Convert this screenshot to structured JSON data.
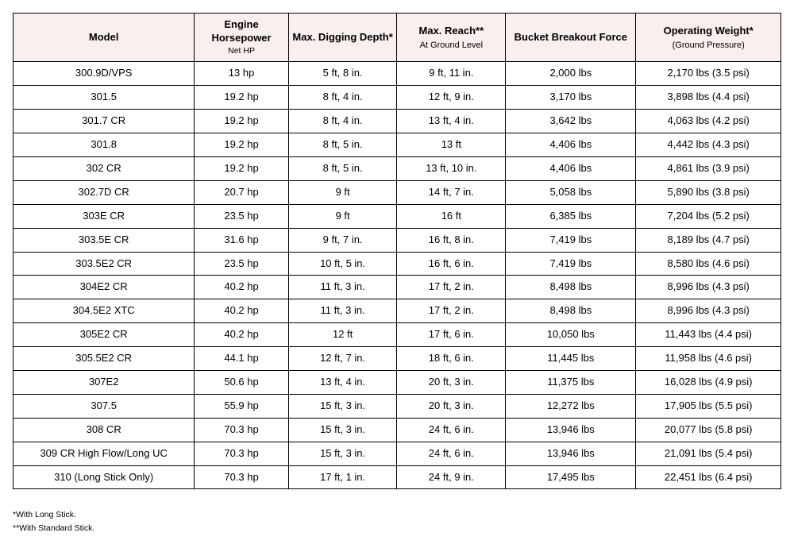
{
  "table": {
    "type": "table",
    "columns": [
      {
        "label": "Model",
        "sub": "",
        "sub2": "",
        "width": "24%"
      },
      {
        "label": "Engine Horsepower",
        "sub": "",
        "sub2": "Net HP",
        "width": "12%"
      },
      {
        "label": "Max. Digging Depth*",
        "sub": "",
        "sub2": "",
        "width": "14%"
      },
      {
        "label": "Max. Reach**",
        "sub": "At Ground Level",
        "sub2": "",
        "width": "14%"
      },
      {
        "label": "Bucket Breakout Force",
        "sub": "",
        "sub2": "",
        "width": "17%"
      },
      {
        "label": "Operating Weight*",
        "sub": "(Ground Pressure)",
        "sub2": "",
        "width": "19%"
      }
    ],
    "rows": [
      [
        "300.9D/VPS",
        "13 hp",
        "5 ft, 8 in.",
        "9 ft, 11 in.",
        "2,000 lbs",
        "2,170 lbs (3.5 psi)"
      ],
      [
        "301.5",
        "19.2 hp",
        "8 ft, 4 in.",
        "12 ft, 9 in.",
        "3,170 lbs",
        "3,898 lbs (4.4 psi)"
      ],
      [
        "301.7 CR",
        "19.2 hp",
        "8 ft, 4 in.",
        "13 ft, 4 in.",
        "3,642 lbs",
        "4,063 lbs (4.2 psi)"
      ],
      [
        "301.8",
        "19.2 hp",
        "8 ft, 5 in.",
        "13 ft",
        "4,406 lbs",
        "4,442 lbs (4.3 psi)"
      ],
      [
        "302 CR",
        "19.2 hp",
        "8 ft, 5 in.",
        "13 ft, 10 in.",
        "4,406 lbs",
        "4,861 lbs (3.9 psi)"
      ],
      [
        "302.7D CR",
        "20.7 hp",
        "9 ft",
        "14 ft, 7 in.",
        "5,058 lbs",
        "5,890 lbs (3.8 psi)"
      ],
      [
        "303E CR",
        "23.5 hp",
        "9 ft",
        "16 ft",
        "6,385 lbs",
        "7,204 lbs (5.2 psi)"
      ],
      [
        "303.5E CR",
        "31.6 hp",
        "9 ft, 7 in.",
        "16 ft, 8 in.",
        "7,419 lbs",
        "8,189 lbs (4.7 psi)"
      ],
      [
        "303.5E2 CR",
        "23.5 hp",
        "10 ft, 5 in.",
        "16 ft, 6 in.",
        "7,419 lbs",
        "8,580 lbs (4.6 psi)"
      ],
      [
        "304E2 CR",
        "40.2 hp",
        "11 ft, 3 in.",
        "17 ft, 2 in.",
        "8,498 lbs",
        "8,996 lbs (4.3 psi)"
      ],
      [
        "304.5E2 XTC",
        "40.2 hp",
        "11 ft, 3 in.",
        "17 ft, 2 in.",
        "8,498 lbs",
        "8,996 lbs (4.3 psi)"
      ],
      [
        "305E2 CR",
        "40.2 hp",
        "12 ft",
        "17 ft, 6 in.",
        "10,050 lbs",
        "11,443 lbs (4.4 psi)"
      ],
      [
        "305.5E2 CR",
        "44.1 hp",
        "12 ft, 7 in.",
        "18 ft, 6 in.",
        "11,445 lbs",
        "11,958 lbs (4.6 psi)"
      ],
      [
        "307E2",
        "50.6 hp",
        "13 ft, 4 in.",
        "20 ft, 3 in.",
        "11,375 lbs",
        "16,028 lbs (4.9 psi)"
      ],
      [
        "307.5",
        "55.9 hp",
        "15 ft, 3 in.",
        "20 ft, 3 in.",
        "12,272 lbs",
        "17,905 lbs (5.5 psi)"
      ],
      [
        "308 CR",
        "70.3 hp",
        "15 ft, 3 in.",
        "24 ft, 6 in.",
        "13,946 lbs",
        "20,077 lbs (5.8 psi)"
      ],
      [
        "309 CR High Flow/Long UC",
        "70.3 hp",
        "15 ft, 3 in.",
        "24 ft, 6 in.",
        "13,946 lbs",
        "21,091 lbs (5.4 psi)"
      ],
      [
        "310 (Long Stick Only)",
        "70.3 hp",
        "17 ft, 1 in.",
        "24 ft, 9 in.",
        "17,495 lbs",
        "22,451 lbs (6.4 psi)"
      ]
    ],
    "header_bg": "#f9efee",
    "border_color": "#000000",
    "cell_fontsize": 13,
    "sub_fontsize": 11
  },
  "footnotes": [
    "*With Long Stick.",
    "**With Standard Stick."
  ]
}
